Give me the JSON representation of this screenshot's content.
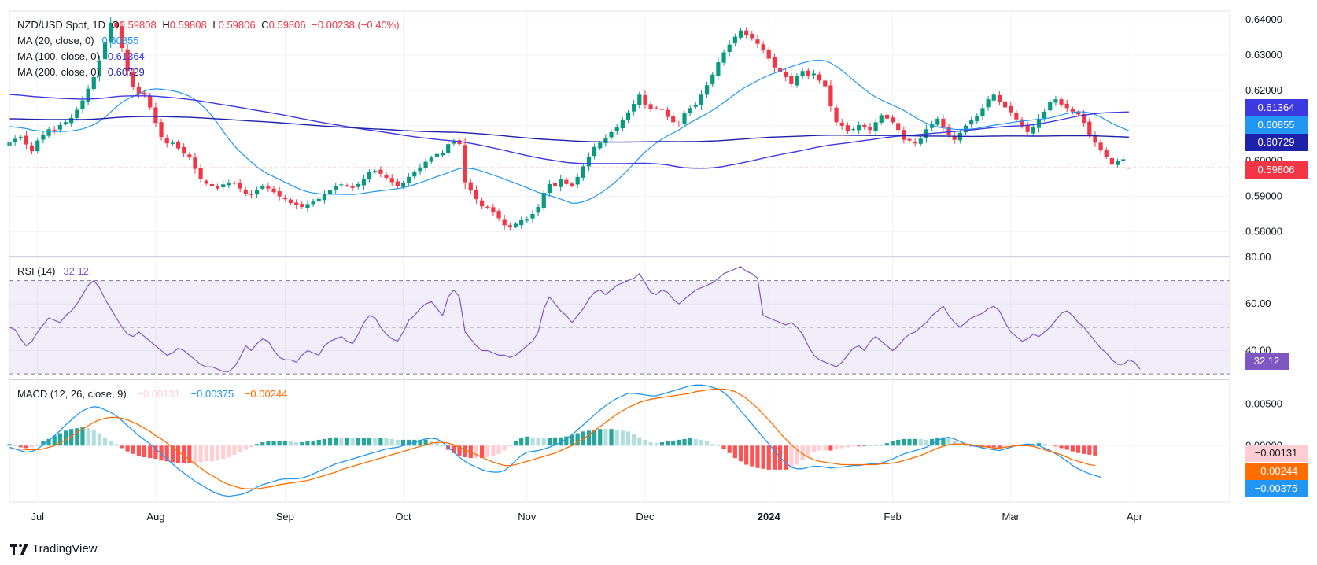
{
  "header": {
    "symbol": "NZD/USD Spot, 1D",
    "open_label": "O",
    "open": "0.59808",
    "high_label": "H",
    "high": "0.59808",
    "low_label": "L",
    "low": "0.59806",
    "close_label": "C",
    "close": "0.59806",
    "change": "−0.00238 (−0.40%)"
  },
  "ma_legend": [
    {
      "label": "MA (20, close, 0)",
      "value": "0.60855",
      "color": "#2196f3"
    },
    {
      "label": "MA (100, close, 0)",
      "value": "0.61364",
      "color": "#3d39e0"
    },
    {
      "label": "MA (200, close, 0)",
      "value": "0.60729",
      "color": "#1e22aa"
    }
  ],
  "rsi_legend": {
    "label": "RSI (14)",
    "value": "32.12",
    "color": "#7e57c2"
  },
  "macd_legend": {
    "label": "MACD (12, 26, close, 9)",
    "hist_value": "−0.00131",
    "macd_value": "−0.00375",
    "signal_value": "−0.00244"
  },
  "price_tags": [
    {
      "value": "0.61364",
      "color": "#3d39e0"
    },
    {
      "value": "0.60855",
      "color": "#2196f3"
    },
    {
      "value": "0.60729",
      "color": "#1e22aa"
    },
    {
      "value": "0.59806",
      "color": "#f23645"
    }
  ],
  "rsi_tag": {
    "value": "32.12",
    "color": "#7e57c2"
  },
  "macd_tags": [
    {
      "value": "−0.00131",
      "color": "#ffcdd2",
      "text": "#131722"
    },
    {
      "value": "−0.00244",
      "color": "#ff6d00",
      "text": "#ffffff"
    },
    {
      "value": "−0.00375",
      "color": "#2196f3",
      "text": "#ffffff"
    }
  ],
  "price_axis": [
    "0.64000",
    "0.63000",
    "0.62000",
    "0.61000",
    "0.60000",
    "0.59000",
    "0.58000"
  ],
  "rsi_axis": [
    "80.00",
    "60.00",
    "40.00"
  ],
  "macd_axis": [
    "0.00500",
    "0.00000"
  ],
  "time_axis": [
    "Jul",
    "Aug",
    "Sep",
    "Oct",
    "Nov",
    "Dec",
    "2024",
    "Feb",
    "Mar",
    "Apr"
  ],
  "branding": "TradingView",
  "chart_data": {
    "type": "candlestick",
    "title": "NZD/USD Spot, 1D",
    "colors": {
      "up": "#089981",
      "down": "#f23645",
      "ma20": "#2196f3",
      "ma100": "#3d39e0",
      "ma200": "#1e22aa",
      "rsi": "#7e57c2",
      "macd": "#2196f3",
      "signal": "#ff6d00"
    },
    "months": [
      {
        "label": "Jul",
        "index": 5
      },
      {
        "label": "Aug",
        "index": 26
      },
      {
        "label": "Sep",
        "index": 49
      },
      {
        "label": "Oct",
        "index": 70
      },
      {
        "label": "Nov",
        "index": 92
      },
      {
        "label": "Dec",
        "index": 113
      },
      {
        "label": "2024",
        "index": 135
      },
      {
        "label": "Feb",
        "index": 157
      },
      {
        "label": "Mar",
        "index": 178
      },
      {
        "label": "Apr",
        "index": 200
      }
    ],
    "price_ylim": [
      0.5734,
      0.6425
    ],
    "rsi_ylim": [
      28,
      80
    ],
    "rsi_levels": [
      70,
      50,
      30
    ],
    "macd_ylim": [
      -0.0068,
      0.0078
    ],
    "close": [
      0.6055,
      0.6063,
      0.6068,
      0.6047,
      0.6028,
      0.6058,
      0.6075,
      0.609,
      0.6088,
      0.6102,
      0.611,
      0.6122,
      0.6145,
      0.6172,
      0.6205,
      0.6238,
      0.6285,
      0.6338,
      0.6392,
      0.638,
      0.632,
      0.6255,
      0.621,
      0.619,
      0.6188,
      0.6152,
      0.6108,
      0.6068,
      0.605,
      0.6052,
      0.6036,
      0.6021,
      0.601,
      0.5978,
      0.5948,
      0.5936,
      0.5928,
      0.5922,
      0.5934,
      0.5939,
      0.5936,
      0.5922,
      0.5908,
      0.5904,
      0.5918,
      0.593,
      0.5922,
      0.5912,
      0.59,
      0.5892,
      0.5881,
      0.5875,
      0.587,
      0.5878,
      0.5885,
      0.5893,
      0.5906,
      0.5918,
      0.5928,
      0.5934,
      0.593,
      0.5924,
      0.5935,
      0.595,
      0.5968,
      0.5972,
      0.5964,
      0.5952,
      0.594,
      0.593,
      0.5938,
      0.5955,
      0.5968,
      0.5982,
      0.5998,
      0.601,
      0.602,
      0.6024,
      0.6048,
      0.6055,
      0.6048,
      0.594,
      0.5916,
      0.5892,
      0.5872,
      0.5868,
      0.5855,
      0.5838,
      0.5818,
      0.5812,
      0.5822,
      0.5832,
      0.5836,
      0.585,
      0.587,
      0.591,
      0.5935,
      0.593,
      0.5948,
      0.5935,
      0.593,
      0.5955,
      0.5985,
      0.6012,
      0.604,
      0.6052,
      0.6066,
      0.6082,
      0.6095,
      0.6115,
      0.6138,
      0.6162,
      0.6188,
      0.616,
      0.6148,
      0.615,
      0.6145,
      0.6125,
      0.611,
      0.6105,
      0.6135,
      0.615,
      0.616,
      0.6188,
      0.6215,
      0.6245,
      0.628,
      0.6308,
      0.633,
      0.6352,
      0.637,
      0.6358,
      0.6348,
      0.6332,
      0.6315,
      0.629,
      0.6265,
      0.6252,
      0.6238,
      0.6218,
      0.6242,
      0.6255,
      0.624,
      0.6248,
      0.6228,
      0.6212,
      0.6155,
      0.611,
      0.61,
      0.6086,
      0.609,
      0.6102,
      0.6095,
      0.6088,
      0.611,
      0.613,
      0.612,
      0.611,
      0.6088,
      0.606,
      0.6058,
      0.605,
      0.6063,
      0.609,
      0.6105,
      0.612,
      0.6095,
      0.6075,
      0.606,
      0.608,
      0.61,
      0.6115,
      0.6128,
      0.615,
      0.6175,
      0.6188,
      0.6168,
      0.6152,
      0.6138,
      0.6118,
      0.6098,
      0.6082,
      0.6095,
      0.612,
      0.614,
      0.6168,
      0.6175,
      0.616,
      0.615,
      0.614,
      0.6132,
      0.6108,
      0.6075,
      0.6052,
      0.603,
      0.6012,
      0.599,
      0.6,
      0.6005,
      0.5981
    ],
    "rsi": [
      50,
      49,
      45,
      42,
      44,
      48,
      51,
      54,
      53,
      52,
      55,
      57,
      60,
      64,
      68,
      70,
      67,
      62,
      58,
      54,
      50,
      47,
      46,
      48,
      46,
      44,
      42,
      40,
      38,
      39,
      41,
      40,
      38,
      36,
      34,
      33,
      33,
      32,
      31,
      31,
      33,
      37,
      42,
      40,
      43,
      45,
      44,
      40,
      37,
      36,
      36,
      35,
      38,
      40,
      39,
      38,
      42,
      44,
      45,
      46,
      44,
      43,
      47,
      52,
      55,
      54,
      50,
      47,
      45,
      44,
      48,
      53,
      55,
      58,
      60,
      61,
      58,
      55,
      63,
      66,
      63,
      48,
      45,
      42,
      40,
      40,
      39,
      38,
      38,
      37,
      38,
      40,
      42,
      44,
      48,
      58,
      63,
      60,
      57,
      55,
      52,
      55,
      58,
      62,
      65,
      66,
      64,
      66,
      68,
      69,
      70,
      71,
      73,
      69,
      65,
      64,
      66,
      65,
      62,
      60,
      62,
      64,
      66,
      67,
      68,
      69,
      71,
      73,
      74,
      75,
      76,
      74,
      73,
      71,
      55,
      54,
      53,
      52,
      51,
      52,
      50,
      47,
      42,
      38,
      36,
      35,
      34,
      33,
      35,
      38,
      41,
      42,
      40,
      44,
      46,
      44,
      42,
      40,
      42,
      45,
      47,
      48,
      50,
      52,
      55,
      57,
      59,
      55,
      52,
      50,
      52,
      54,
      55,
      56,
      58,
      59,
      57,
      52,
      48,
      46,
      44,
      45,
      47,
      46,
      48,
      50,
      53,
      56,
      57,
      55,
      52,
      50,
      47,
      44,
      41,
      39,
      36,
      34,
      34,
      36,
      35,
      32
    ],
    "macd": [
      -0.0002,
      -0.0004,
      -0.0006,
      -0.0008,
      -0.0007,
      -0.0004,
      0.0001,
      0.0006,
      0.0012,
      0.0018,
      0.0025,
      0.0031,
      0.0037,
      0.0042,
      0.0045,
      0.0047,
      0.0046,
      0.0043,
      0.004,
      0.0036,
      0.003,
      0.0024,
      0.0018,
      0.0012,
      0.0007,
      0.0002,
      -0.0004,
      -0.001,
      -0.0016,
      -0.0022,
      -0.0028,
      -0.0033,
      -0.0038,
      -0.0043,
      -0.0047,
      -0.0051,
      -0.0055,
      -0.0058,
      -0.006,
      -0.0061,
      -0.006,
      -0.0059,
      -0.0057,
      -0.0054,
      -0.005,
      -0.0047,
      -0.0045,
      -0.0043,
      -0.0041,
      -0.004,
      -0.004,
      -0.004,
      -0.0039,
      -0.0037,
      -0.0034,
      -0.0031,
      -0.0028,
      -0.0025,
      -0.0022,
      -0.002,
      -0.0018,
      -0.0016,
      -0.0014,
      -0.0012,
      -0.001,
      -0.0008,
      -0.0006,
      -0.0004,
      -0.0003,
      -0.0002,
      0.0,
      0.0002,
      0.0004,
      0.0006,
      0.0008,
      0.0009,
      0.0008,
      0.0004,
      -0.0002,
      -0.0008,
      -0.0014,
      -0.0019,
      -0.0023,
      -0.0026,
      -0.0029,
      -0.0031,
      -0.0032,
      -0.0032,
      -0.003,
      -0.0025,
      -0.0018,
      -0.0012,
      -0.0008,
      -0.0007,
      -0.0006,
      -0.0004,
      -0.0002,
      0.0001,
      0.0004,
      0.0008,
      0.0013,
      0.0019,
      0.0025,
      0.0031,
      0.0037,
      0.0043,
      0.0048,
      0.0053,
      0.0057,
      0.006,
      0.0063,
      0.0063,
      0.0062,
      0.0061,
      0.006,
      0.006,
      0.0062,
      0.0064,
      0.0066,
      0.0068,
      0.007,
      0.0072,
      0.0073,
      0.0073,
      0.0072,
      0.007,
      0.0068,
      0.0064,
      0.0058,
      0.005,
      0.0042,
      0.0034,
      0.0026,
      0.0018,
      0.001,
      0.0002,
      -0.0006,
      -0.0014,
      -0.0021,
      -0.0026,
      -0.0028,
      -0.0028,
      -0.0026,
      -0.0025,
      -0.0025,
      -0.0026,
      -0.0027,
      -0.0026,
      -0.0026,
      -0.0025,
      -0.0024,
      -0.0024,
      -0.0023,
      -0.0022,
      -0.0022,
      -0.0021,
      -0.0019,
      -0.0016,
      -0.0013,
      -0.001,
      -0.0008,
      -0.0006,
      -0.0004,
      -0.0002,
      0.0002,
      0.0006,
      0.0009,
      0.001,
      0.0008,
      0.0005,
      0.0002,
      0.0,
      -0.0001,
      -0.0003,
      -0.0004,
      -0.0005,
      -0.0006,
      -0.0004,
      -0.0002,
      0.0,
      0.0001,
      0.0002,
      0.0001,
      0.0,
      -0.0003,
      -0.0006,
      -0.001,
      -0.0014,
      -0.0019,
      -0.0024,
      -0.0028,
      -0.0031,
      -0.0034,
      -0.0036,
      -0.0038
    ],
    "signal": [
      -0.0004,
      -0.0004,
      -0.0004,
      -0.0005,
      -0.0005,
      -0.0005,
      -0.0004,
      -0.0002,
      0.0,
      0.0003,
      0.0007,
      0.0011,
      0.0016,
      0.002,
      0.0024,
      0.0028,
      0.0031,
      0.0033,
      0.0034,
      0.0034,
      0.0033,
      0.0031,
      0.0028,
      0.0025,
      0.0021,
      0.0017,
      0.0012,
      0.0008,
      0.0003,
      -0.0002,
      -0.0007,
      -0.0012,
      -0.0017,
      -0.0022,
      -0.0027,
      -0.0032,
      -0.0036,
      -0.004,
      -0.0044,
      -0.0047,
      -0.0049,
      -0.0051,
      -0.0052,
      -0.0052,
      -0.0052,
      -0.0051,
      -0.005,
      -0.0049,
      -0.0047,
      -0.0046,
      -0.0045,
      -0.0044,
      -0.0043,
      -0.0042,
      -0.004,
      -0.0038,
      -0.0036,
      -0.0034,
      -0.0032,
      -0.0029,
      -0.0027,
      -0.0025,
      -0.0023,
      -0.0021,
      -0.0019,
      -0.0017,
      -0.0015,
      -0.0013,
      -0.0011,
      -0.0009,
      -0.0007,
      -0.0005,
      -0.0003,
      -0.0001,
      0.0001,
      0.0003,
      0.0004,
      0.0004,
      0.0003,
      0.0001,
      -0.0002,
      -0.0005,
      -0.0008,
      -0.0011,
      -0.0014,
      -0.0017,
      -0.002,
      -0.0022,
      -0.0024,
      -0.0024,
      -0.0023,
      -0.0021,
      -0.0019,
      -0.0017,
      -0.0015,
      -0.0013,
      -0.0011,
      -0.0009,
      -0.0006,
      -0.0003,
      0.0,
      0.0004,
      0.0008,
      0.0013,
      0.0018,
      0.0023,
      0.0028,
      0.0033,
      0.0038,
      0.0042,
      0.0046,
      0.0049,
      0.0052,
      0.0054,
      0.0056,
      0.0057,
      0.0058,
      0.0059,
      0.006,
      0.0061,
      0.0062,
      0.0063,
      0.0065,
      0.0066,
      0.0067,
      0.0068,
      0.0068,
      0.0068,
      0.0067,
      0.0065,
      0.0061,
      0.0057,
      0.0051,
      0.0045,
      0.0038,
      0.0031,
      0.0023,
      0.0015,
      0.0008,
      0.0001,
      -0.0005,
      -0.001,
      -0.0014,
      -0.0017,
      -0.0019,
      -0.002,
      -0.0021,
      -0.0022,
      -0.0023,
      -0.0023,
      -0.0023,
      -0.0023,
      -0.0023,
      -0.0023,
      -0.0023,
      -0.0022,
      -0.0022,
      -0.0021,
      -0.002,
      -0.0018,
      -0.0016,
      -0.0014,
      -0.0012,
      -0.0009,
      -0.0006,
      -0.0003,
      -0.0001,
      0.0001,
      0.0002,
      0.0002,
      0.0002,
      0.0001,
      0.0,
      -0.0001,
      -0.0002,
      -0.0003,
      -0.0003,
      -0.0002,
      -0.0001,
      0.0,
      0.0,
      0.0,
      -0.0001,
      -0.0003,
      -0.0005,
      -0.0007,
      -0.0009,
      -0.0011,
      -0.0014,
      -0.0017,
      -0.0019,
      -0.0021,
      -0.0023,
      -0.0024
    ]
  }
}
